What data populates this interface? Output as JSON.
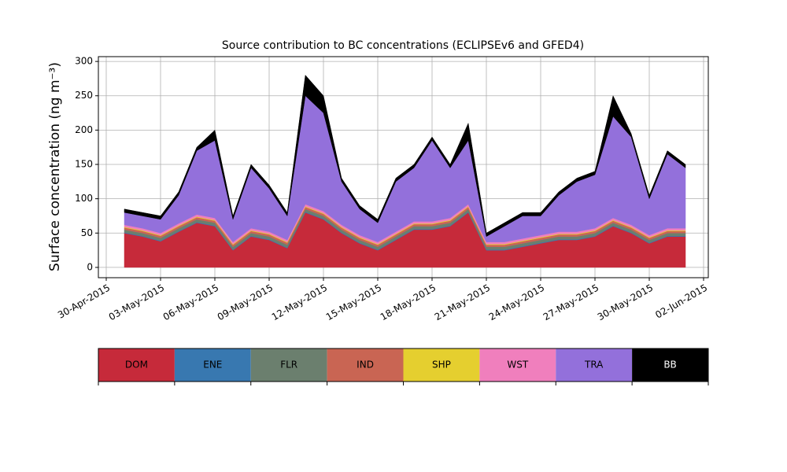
{
  "chart_data": {
    "type": "stacked_area",
    "title": "Source contribution to BC concentrations (ECLIPSEv6 and GFED4)",
    "y_label": "Surface concentration (ng m⁻³)",
    "x": [
      "2015-05-01",
      "2015-05-02",
      "2015-05-03",
      "2015-05-04",
      "2015-05-05",
      "2015-05-06",
      "2015-05-07",
      "2015-05-08",
      "2015-05-09",
      "2015-05-10",
      "2015-05-11",
      "2015-05-12",
      "2015-05-13",
      "2015-05-14",
      "2015-05-15",
      "2015-05-16",
      "2015-05-17",
      "2015-05-18",
      "2015-05-19",
      "2015-05-20",
      "2015-05-21",
      "2015-05-22",
      "2015-05-23",
      "2015-05-24",
      "2015-05-25",
      "2015-05-26",
      "2015-05-27",
      "2015-05-28",
      "2015-05-29",
      "2015-05-30",
      "2015-05-31",
      "2015-06-01"
    ],
    "series": [
      {
        "name": "DOM",
        "color": "#c62a3a",
        "values": [
          50,
          45,
          38,
          52,
          65,
          60,
          25,
          45,
          40,
          28,
          80,
          70,
          50,
          35,
          25,
          40,
          55,
          55,
          60,
          80,
          25,
          25,
          30,
          35,
          40,
          40,
          45,
          60,
          50,
          35,
          45,
          45
        ]
      },
      {
        "name": "ENE",
        "color": "#3878b0",
        "values": [
          1,
          1,
          1,
          1,
          1,
          1,
          1,
          1,
          1,
          1,
          1,
          1,
          1,
          1,
          1,
          1,
          1,
          1,
          1,
          1,
          1,
          1,
          1,
          1,
          1,
          1,
          1,
          1,
          1,
          1,
          1,
          1
        ]
      },
      {
        "name": "FLR",
        "color": "#6b7f6e",
        "values": [
          4,
          4,
          4,
          4,
          4,
          4,
          4,
          4,
          4,
          4,
          4,
          4,
          4,
          4,
          4,
          4,
          4,
          4,
          4,
          4,
          4,
          4,
          4,
          4,
          4,
          4,
          4,
          4,
          4,
          4,
          4,
          4
        ]
      },
      {
        "name": "IND",
        "color": "#c96553",
        "values": [
          3,
          3,
          3,
          3,
          3,
          3,
          3,
          3,
          3,
          3,
          3,
          3,
          3,
          3,
          3,
          3,
          3,
          3,
          3,
          3,
          3,
          3,
          3,
          3,
          3,
          3,
          3,
          3,
          3,
          3,
          3,
          3
        ]
      },
      {
        "name": "SHP",
        "color": "#e5cf2f",
        "values": [
          1,
          1,
          1,
          1,
          1,
          1,
          1,
          1,
          1,
          1,
          1,
          1,
          1,
          1,
          1,
          1,
          1,
          1,
          1,
          1,
          1,
          1,
          1,
          1,
          1,
          1,
          1,
          1,
          1,
          1,
          1,
          1
        ]
      },
      {
        "name": "WST",
        "color": "#f07fbd",
        "values": [
          3,
          3,
          3,
          3,
          3,
          3,
          3,
          3,
          3,
          3,
          3,
          3,
          3,
          3,
          3,
          3,
          3,
          3,
          3,
          3,
          3,
          3,
          3,
          3,
          3,
          3,
          3,
          3,
          3,
          3,
          3,
          3
        ]
      },
      {
        "name": "TRA",
        "color": "#9370db",
        "values": [
          18,
          18,
          20,
          41,
          93,
          113,
          33,
          88,
          63,
          35,
          158,
          143,
          63,
          38,
          28,
          73,
          78,
          118,
          73,
          93,
          8,
          23,
          33,
          28,
          53,
          73,
          78,
          148,
          128,
          53,
          108,
          88
        ]
      },
      {
        "name": "BB",
        "color": "#000000",
        "values": [
          5,
          5,
          5,
          5,
          5,
          15,
          5,
          5,
          5,
          5,
          30,
          25,
          5,
          5,
          5,
          5,
          5,
          5,
          5,
          25,
          5,
          5,
          5,
          5,
          5,
          5,
          5,
          30,
          5,
          5,
          5,
          5
        ]
      }
    ],
    "xlim": [
      "2015-04-30",
      "2015-06-02"
    ],
    "xticks": [
      {
        "value": "2015-04-30",
        "label": "30-Apr-2015"
      },
      {
        "value": "2015-05-03",
        "label": "03-May-2015"
      },
      {
        "value": "2015-05-06",
        "label": "06-May-2015"
      },
      {
        "value": "2015-05-09",
        "label": "09-May-2015"
      },
      {
        "value": "2015-05-12",
        "label": "12-May-2015"
      },
      {
        "value": "2015-05-15",
        "label": "15-May-2015"
      },
      {
        "value": "2015-05-18",
        "label": "18-May-2015"
      },
      {
        "value": "2015-05-21",
        "label": "21-May-2015"
      },
      {
        "value": "2015-05-24",
        "label": "24-May-2015"
      },
      {
        "value": "2015-05-27",
        "label": "27-May-2015"
      },
      {
        "value": "2015-05-30",
        "label": "30-May-2015"
      },
      {
        "value": "2015-06-02",
        "label": "02-Jun-2015"
      }
    ],
    "ylim": [
      -15,
      307
    ],
    "yticks": [
      0,
      50,
      100,
      150,
      200,
      250,
      300
    ],
    "grid": true
  }
}
